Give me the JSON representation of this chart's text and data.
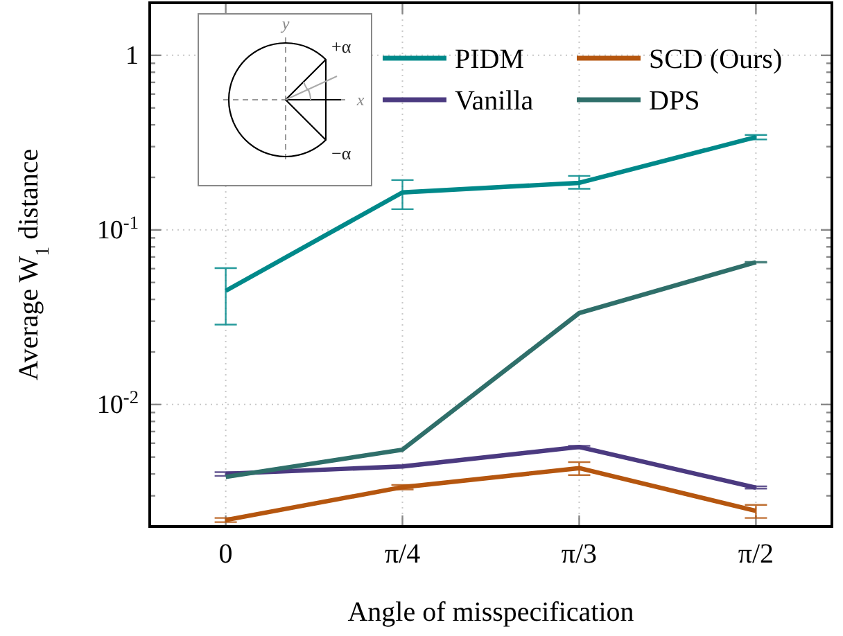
{
  "chart_data": {
    "type": "line",
    "xlabel": "Angle of misspecification",
    "ylabel": "Average W$_{1}$ distance",
    "categories": [
      "0",
      "π/4",
      "π/3",
      "π/2"
    ],
    "log": "y",
    "ylim": [
      0.002,
      2
    ],
    "yticks": [
      {
        "value": 0.002,
        "label": null
      },
      {
        "value": 0.003,
        "label": null
      },
      {
        "value": 0.004,
        "label": null
      },
      {
        "value": 0.005,
        "label": null
      },
      {
        "value": 0.006,
        "label": null
      },
      {
        "value": 0.007,
        "label": null
      },
      {
        "value": 0.008,
        "label": null
      },
      {
        "value": 0.009,
        "label": null
      },
      {
        "value": 0.01,
        "label": "10$^{-2}$"
      },
      {
        "value": 0.02,
        "label": null
      },
      {
        "value": 0.03,
        "label": null
      },
      {
        "value": 0.04,
        "label": null
      },
      {
        "value": 0.05,
        "label": null
      },
      {
        "value": 0.06,
        "label": null
      },
      {
        "value": 0.07,
        "label": null
      },
      {
        "value": 0.08,
        "label": null
      },
      {
        "value": 0.09,
        "label": null
      },
      {
        "value": 0.1,
        "label": "10$^{-1}$"
      },
      {
        "value": 0.2,
        "label": null
      },
      {
        "value": 0.3,
        "label": null
      },
      {
        "value": 0.4,
        "label": null
      },
      {
        "value": 0.5,
        "label": null
      },
      {
        "value": 0.6,
        "label": null
      },
      {
        "value": 0.7,
        "label": null
      },
      {
        "value": 0.8,
        "label": null
      },
      {
        "value": 0.9,
        "label": null
      },
      1,
      {
        "value": 2,
        "label": null
      }
    ],
    "grid": true,
    "legend": "top right",
    "line_style": "solid",
    "marker": "none",
    "series": [
      {
        "name": "PIDM",
        "color": "#00898a",
        "values": [
          0.0448,
          0.164,
          0.186,
          0.34
        ],
        "errors": [
          [
            0.0287,
            0.0604
          ],
          [
            0.1315,
            0.193
          ],
          [
            0.172,
            0.204
          ],
          [
            0.33,
            0.35
          ]
        ]
      },
      {
        "name": "Vanilla",
        "color": "#4b3a80",
        "values": [
          0.00401,
          0.00442,
          0.00571,
          0.00334
        ],
        "errors": [
          [
            0.0039,
            0.0041
          ],
          null,
          [
            0.0056,
            0.0058
          ],
          [
            0.0033,
            0.0034
          ]
        ]
      },
      {
        "name": "SCD (Ours)",
        "color": "#b5560f",
        "values": [
          0.00218,
          0.00336,
          0.00432,
          0.00246
        ],
        "errors": [
          [
            0.00212,
            0.00224
          ],
          [
            0.00326,
            0.00346
          ],
          [
            0.00394,
            0.00468
          ],
          [
            0.00224,
            0.00266
          ]
        ]
      },
      {
        "name": "DPS",
        "color": "#2f6f6a",
        "values": [
          0.00385,
          0.00551,
          0.0334,
          0.0653
        ],
        "errors": [
          null,
          null,
          null,
          [
            0.065,
            0.0656
          ]
        ]
      }
    ],
    "annotations": [
      "y",
      "x",
      "+α",
      "−α"
    ]
  }
}
